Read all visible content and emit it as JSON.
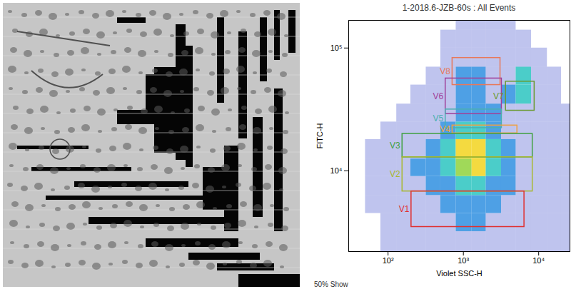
{
  "chart_data": {
    "type": "scatter",
    "title": "1-2018.6-JZB-60s : All Events",
    "x_label": "Violet SSC-H",
    "y_label": "FITC-H",
    "caption": "50% Show",
    "log": true,
    "grid": false,
    "xlim": [
      30,
      26000
    ],
    "ylim": [
      2200,
      168000
    ],
    "xticks": [
      {
        "value": 100,
        "label": "10²"
      },
      {
        "value": 1000,
        "label": "10³"
      },
      {
        "value": 10000,
        "label": "10⁴"
      }
    ],
    "yticks": [
      {
        "value": 10000,
        "label": "10⁴"
      },
      {
        "value": 100000,
        "label": "10⁵"
      }
    ],
    "cells": {
      "x_edges": [
        30,
        50,
        80,
        130,
        200,
        320,
        500,
        800,
        1300,
        2000,
        3200,
        5000,
        8000,
        13000,
        20000,
        26000
      ],
      "y_edges": [
        2200,
        3200,
        4500,
        6300,
        9000,
        12500,
        18000,
        25000,
        35000,
        50000,
        70000,
        100000,
        140000,
        168000
      ],
      "levels": [
        [
          0,
          0,
          1,
          1,
          1,
          1,
          1,
          1,
          1,
          1,
          1,
          1,
          1,
          1,
          1
        ],
        [
          0,
          0,
          1,
          1,
          1,
          1,
          1,
          2,
          2,
          1,
          1,
          1,
          1,
          1,
          1
        ],
        [
          0,
          1,
          1,
          1,
          1,
          1,
          2,
          2,
          2,
          2,
          1,
          1,
          1,
          1,
          1
        ],
        [
          0,
          1,
          1,
          1,
          1,
          2,
          2,
          3,
          3,
          2,
          2,
          1,
          1,
          1,
          1
        ],
        [
          0,
          1,
          1,
          1,
          2,
          2,
          3,
          4,
          5,
          3,
          2,
          1,
          1,
          1,
          1
        ],
        [
          0,
          1,
          1,
          1,
          1,
          2,
          3,
          5,
          5,
          3,
          2,
          1,
          1,
          1,
          1
        ],
        [
          0,
          0,
          1,
          1,
          1,
          1,
          2,
          3,
          3,
          2,
          1,
          1,
          1,
          1,
          1
        ],
        [
          0,
          0,
          0,
          1,
          1,
          1,
          1,
          2,
          2,
          2,
          1,
          1,
          1,
          1,
          1
        ],
        [
          0,
          0,
          0,
          0,
          1,
          1,
          1,
          2,
          2,
          1,
          2,
          3,
          1,
          1,
          0
        ],
        [
          0,
          0,
          0,
          0,
          0,
          1,
          1,
          2,
          2,
          1,
          1,
          3,
          1,
          1,
          0
        ],
        [
          0,
          0,
          0,
          0,
          0,
          0,
          1,
          1,
          1,
          1,
          1,
          1,
          1,
          0,
          0
        ],
        [
          0,
          0,
          0,
          0,
          0,
          0,
          1,
          1,
          1,
          1,
          1,
          1,
          0,
          0,
          0
        ],
        [
          0,
          0,
          0,
          0,
          0,
          0,
          0,
          1,
          1,
          1,
          1,
          0,
          0,
          0,
          0
        ]
      ],
      "level_colors": [
        "#2a3cc8",
        "#2f8fe0",
        "#2cc4c0",
        "#8fd23c",
        "#f2d41e"
      ]
    },
    "gates": [
      {
        "name": "V8",
        "color": "#e8785a",
        "x": [
          716,
          3100
        ],
        "y": [
          50000,
          83000
        ]
      },
      {
        "name": "V6",
        "color": "#a0409a",
        "x": [
          580,
          3230
        ],
        "y": [
          29000,
          56500
        ]
      },
      {
        "name": "V7",
        "color": "#6a9a30",
        "x": [
          3660,
          8800
        ],
        "y": [
          30900,
          53300
        ]
      },
      {
        "name": "V5",
        "color": "#4ab0b0",
        "x": [
          580,
          3230
        ],
        "y": [
          22300,
          31600
        ]
      },
      {
        "name": "V4",
        "color": "#f0a040",
        "x": [
          716,
          5200
        ],
        "y": [
          20200,
          23400
        ]
      },
      {
        "name": "V3",
        "color": "#40a040",
        "x": [
          155,
          8300
        ],
        "y": [
          12900,
          20000
        ]
      },
      {
        "name": "V2",
        "color": "#a8b830",
        "x": [
          155,
          8300
        ],
        "y": [
          6800,
          12900
        ]
      },
      {
        "name": "V1",
        "color": "#e03030",
        "x": [
          204,
          6450
        ],
        "y": [
          3490,
          6800
        ]
      }
    ]
  }
}
